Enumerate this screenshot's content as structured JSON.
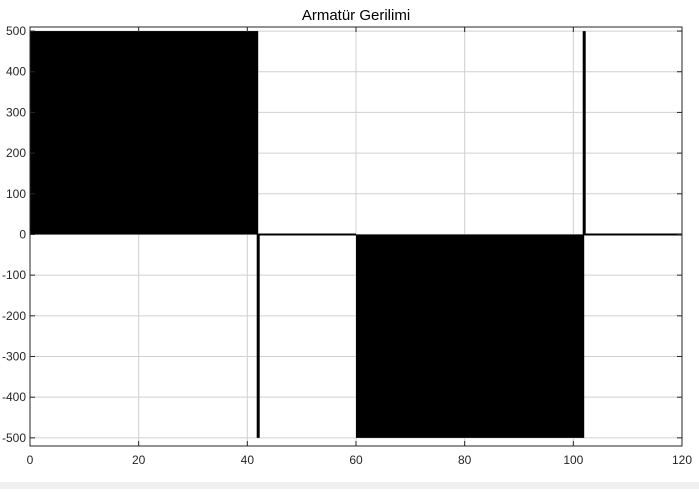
{
  "chart_data": {
    "type": "area",
    "title": "Armatür Gerilimi",
    "xlabel": "",
    "ylabel": "",
    "xlim": [
      0,
      120
    ],
    "ylim": [
      -520,
      510
    ],
    "xticks": [
      0,
      20,
      40,
      60,
      80,
      100,
      120
    ],
    "xtick_labels": [
      "0",
      "20",
      "40",
      "60",
      "80",
      "100",
      "120"
    ],
    "yticks": [
      -500,
      -400,
      -300,
      -200,
      -100,
      0,
      100,
      200,
      300,
      400,
      500
    ],
    "ytick_labels": [
      "-500",
      "-400",
      "-300",
      "-200",
      "-100",
      "0",
      "100",
      "200",
      "300",
      "400",
      "500"
    ],
    "grid": true,
    "series": [
      {
        "description": "PWM switching bands (filled rapid oscillation)",
        "bands": [
          {
            "x_start": 0,
            "x_end": 42,
            "y_min": 0,
            "y_max": 500
          },
          {
            "x_start": 60,
            "x_end": 102,
            "y_min": -500,
            "y_max": 0
          }
        ]
      },
      {
        "description": "spikes",
        "spikes": [
          {
            "x": 42,
            "y_from": 0,
            "y_to": -500
          },
          {
            "x": 102,
            "y_from": 0,
            "y_to": 500
          }
        ]
      },
      {
        "description": "zero line",
        "segments": [
          {
            "x_start": 42,
            "x_end": 60,
            "y": 0
          },
          {
            "x_start": 102,
            "x_end": 120,
            "y": 0
          }
        ]
      }
    ],
    "colors": {
      "trace": "#000000",
      "grid": "#d0d0d0",
      "axes": "#262626",
      "background": "#ffffff"
    }
  }
}
